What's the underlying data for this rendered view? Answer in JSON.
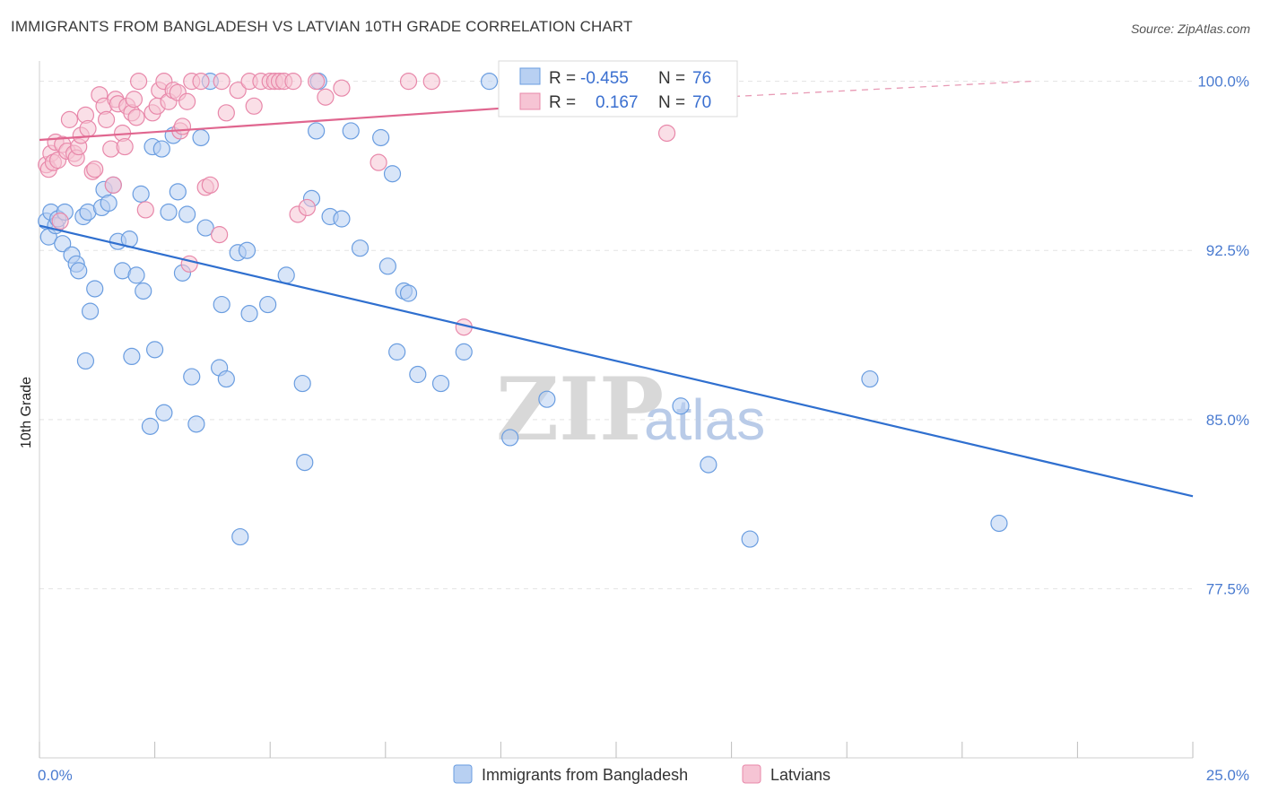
{
  "title": "IMMIGRANTS FROM BANGLADESH VS LATVIAN 10TH GRADE CORRELATION CHART",
  "source": "Source: ZipAtlas.com",
  "watermark": {
    "zip": "ZIP",
    "atlas": "atlas"
  },
  "chart_data": {
    "type": "scatter",
    "xlabel": "",
    "ylabel": "10th Grade",
    "xlim": [
      0,
      25
    ],
    "ylim": [
      70,
      100.9
    ],
    "x_tick_labels": [
      {
        "value": 0,
        "label": "0.0%"
      },
      {
        "value": 25,
        "label": "25.0%"
      }
    ],
    "y_tick_labels": [
      {
        "value": 100,
        "label": "100.0%"
      },
      {
        "value": 92.5,
        "label": "92.5%"
      },
      {
        "value": 85,
        "label": "85.0%"
      },
      {
        "value": 77.5,
        "label": "77.5%"
      }
    ],
    "grid": true,
    "legend_position": "top-center",
    "series": [
      {
        "name": "Immigrants from Bangladesh",
        "color": "#6a9de0",
        "fill": "#b8d0f2",
        "R": "-0.455",
        "N": "76",
        "trend": {
          "x0": 0,
          "y0": 93.6,
          "x1": 25,
          "y1": 81.6
        },
        "points": [
          [
            0.15,
            93.8
          ],
          [
            0.2,
            93.1
          ],
          [
            0.25,
            94.2
          ],
          [
            0.35,
            93.6
          ],
          [
            0.4,
            93.9
          ],
          [
            0.5,
            92.8
          ],
          [
            0.55,
            94.2
          ],
          [
            0.7,
            92.3
          ],
          [
            0.8,
            91.9
          ],
          [
            0.85,
            91.6
          ],
          [
            0.95,
            94.0
          ],
          [
            1.05,
            94.2
          ],
          [
            1.1,
            89.8
          ],
          [
            1.2,
            90.8
          ],
          [
            1.35,
            94.4
          ],
          [
            1.4,
            95.2
          ],
          [
            1.5,
            94.6
          ],
          [
            1.6,
            95.4
          ],
          [
            1.0,
            87.6
          ],
          [
            1.7,
            92.9
          ],
          [
            1.8,
            91.6
          ],
          [
            1.95,
            93.0
          ],
          [
            2.0,
            87.8
          ],
          [
            2.1,
            91.4
          ],
          [
            2.2,
            95.0
          ],
          [
            2.25,
            90.7
          ],
          [
            2.4,
            84.7
          ],
          [
            2.45,
            97.1
          ],
          [
            2.5,
            88.1
          ],
          [
            2.65,
            97.0
          ],
          [
            2.7,
            85.3
          ],
          [
            2.8,
            94.2
          ],
          [
            2.9,
            97.6
          ],
          [
            3.0,
            95.1
          ],
          [
            3.1,
            91.5
          ],
          [
            3.2,
            94.1
          ],
          [
            3.3,
            86.9
          ],
          [
            3.4,
            84.8
          ],
          [
            3.5,
            97.5
          ],
          [
            3.6,
            93.5
          ],
          [
            3.7,
            100.0
          ],
          [
            3.9,
            87.3
          ],
          [
            3.95,
            90.1
          ],
          [
            4.05,
            86.8
          ],
          [
            4.3,
            92.4
          ],
          [
            4.35,
            79.8
          ],
          [
            4.5,
            92.5
          ],
          [
            4.55,
            89.7
          ],
          [
            4.95,
            90.1
          ],
          [
            5.35,
            91.4
          ],
          [
            5.7,
            86.6
          ],
          [
            5.75,
            83.1
          ],
          [
            5.9,
            94.8
          ],
          [
            6.0,
            97.8
          ],
          [
            6.05,
            100.0
          ],
          [
            6.3,
            94.0
          ],
          [
            6.55,
            93.9
          ],
          [
            6.75,
            97.8
          ],
          [
            6.95,
            92.6
          ],
          [
            7.4,
            97.5
          ],
          [
            7.55,
            91.8
          ],
          [
            7.65,
            95.9
          ],
          [
            7.75,
            88.0
          ],
          [
            7.9,
            90.7
          ],
          [
            8.0,
            90.6
          ],
          [
            8.2,
            87.0
          ],
          [
            8.7,
            86.6
          ],
          [
            9.2,
            88.0
          ],
          [
            9.75,
            100.0
          ],
          [
            10.2,
            84.2
          ],
          [
            11.0,
            85.9
          ],
          [
            13.9,
            85.6
          ],
          [
            14.5,
            83.0
          ],
          [
            15.4,
            79.7
          ],
          [
            18.0,
            86.8
          ],
          [
            20.8,
            80.4
          ]
        ]
      },
      {
        "name": "Latvians",
        "color": "#e888aa",
        "fill": "#f6c4d4",
        "R": "0.167",
        "N": "70",
        "trend": {
          "x0": 0,
          "y0": 97.4,
          "x1": 10,
          "y1": 98.8
        },
        "trend_dashed": {
          "x0": 10,
          "y0": 98.8,
          "x1": 21.5,
          "y1": 100.0
        },
        "points": [
          [
            0.15,
            96.3
          ],
          [
            0.2,
            96.1
          ],
          [
            0.25,
            96.8
          ],
          [
            0.3,
            96.4
          ],
          [
            0.35,
            97.3
          ],
          [
            0.4,
            96.5
          ],
          [
            0.45,
            93.8
          ],
          [
            0.5,
            97.2
          ],
          [
            0.6,
            96.9
          ],
          [
            0.65,
            98.3
          ],
          [
            0.75,
            96.8
          ],
          [
            0.8,
            96.6
          ],
          [
            0.85,
            97.1
          ],
          [
            0.9,
            97.6
          ],
          [
            1.0,
            98.5
          ],
          [
            1.05,
            97.9
          ],
          [
            1.15,
            96.0
          ],
          [
            1.2,
            96.1
          ],
          [
            1.3,
            99.4
          ],
          [
            1.4,
            98.9
          ],
          [
            1.45,
            98.3
          ],
          [
            1.55,
            97.0
          ],
          [
            1.6,
            95.4
          ],
          [
            1.65,
            99.2
          ],
          [
            1.7,
            99.0
          ],
          [
            1.8,
            97.7
          ],
          [
            1.85,
            97.1
          ],
          [
            1.9,
            98.9
          ],
          [
            2.0,
            98.6
          ],
          [
            2.05,
            99.2
          ],
          [
            2.1,
            98.4
          ],
          [
            2.15,
            100.0
          ],
          [
            2.3,
            94.3
          ],
          [
            2.45,
            98.6
          ],
          [
            2.55,
            98.9
          ],
          [
            2.6,
            99.6
          ],
          [
            2.7,
            100.0
          ],
          [
            2.8,
            99.1
          ],
          [
            2.9,
            99.6
          ],
          [
            3.0,
            99.5
          ],
          [
            3.05,
            97.8
          ],
          [
            3.1,
            98.0
          ],
          [
            3.2,
            99.1
          ],
          [
            3.25,
            91.9
          ],
          [
            3.3,
            100.0
          ],
          [
            3.5,
            100.0
          ],
          [
            3.6,
            95.3
          ],
          [
            3.7,
            95.4
          ],
          [
            3.9,
            93.2
          ],
          [
            3.95,
            100.0
          ],
          [
            4.05,
            98.6
          ],
          [
            4.3,
            99.6
          ],
          [
            4.55,
            100.0
          ],
          [
            4.65,
            98.9
          ],
          [
            4.8,
            100.0
          ],
          [
            5.0,
            100.0
          ],
          [
            5.1,
            100.0
          ],
          [
            5.2,
            100.0
          ],
          [
            5.3,
            100.0
          ],
          [
            5.5,
            100.0
          ],
          [
            5.6,
            94.1
          ],
          [
            5.8,
            94.4
          ],
          [
            6.0,
            100.0
          ],
          [
            6.2,
            99.3
          ],
          [
            6.55,
            99.7
          ],
          [
            7.35,
            96.4
          ],
          [
            8.0,
            100.0
          ],
          [
            8.5,
            100.0
          ],
          [
            9.2,
            89.1
          ],
          [
            13.6,
            97.7
          ]
        ]
      }
    ]
  }
}
